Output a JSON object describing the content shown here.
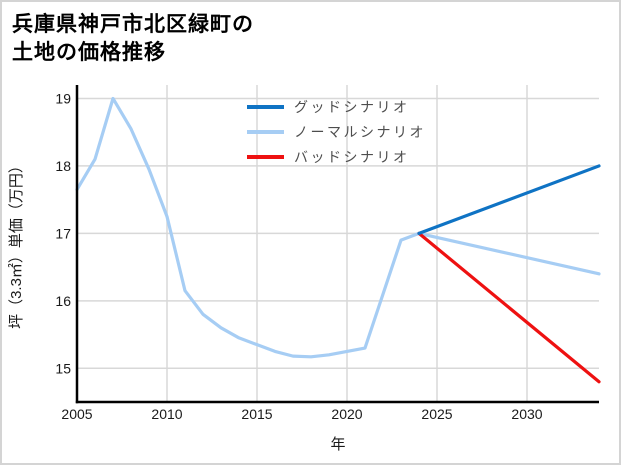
{
  "header": {
    "title_line1": "兵庫県神戸市北区緑町の",
    "title_line2": "土地の価格推移"
  },
  "colors": {
    "background": "#ffffff",
    "frame_border": "#d4d4d4",
    "grid": "#d8d8d8",
    "axis": "#000000",
    "tick_text": "#1a1a1a",
    "legend_text": "#4d4d4d",
    "good_scenario": "#0f73c4",
    "normal_scenario": "#a6cdf4",
    "bad_scenario": "#ee1111"
  },
  "chart_data": {
    "type": "line",
    "title": "兵庫県神戸市北区緑町の土地の価格推移",
    "xlabel": "年",
    "ylabel": "坪（3.3㎡）単価（万円）",
    "xlim": [
      2005,
      2034
    ],
    "ylim": [
      14.5,
      19.2
    ],
    "xticks": [
      2005,
      2010,
      2015,
      2020,
      2025,
      2030
    ],
    "yticks": [
      15,
      16,
      17,
      18,
      19
    ],
    "grid": true,
    "legend": {
      "position": "upper center",
      "frame": false
    },
    "series": [
      {
        "name": "グッドシナリオ",
        "color": "#0f73c4",
        "x": [
          2024,
          2034
        ],
        "y": [
          17.0,
          18.0
        ]
      },
      {
        "name": "ノーマルシナリオ",
        "color": "#a6cdf4",
        "x": [
          2005,
          2006,
          2007,
          2008,
          2009,
          2010,
          2011,
          2012,
          2013,
          2014,
          2015,
          2016,
          2017,
          2018,
          2019,
          2020,
          2021,
          2022,
          2023,
          2024,
          2034
        ],
        "y": [
          17.65,
          18.1,
          19.0,
          18.55,
          17.95,
          17.25,
          16.15,
          15.8,
          15.6,
          15.45,
          15.35,
          15.25,
          15.18,
          15.17,
          15.2,
          15.25,
          15.3,
          16.1,
          16.9,
          17.0,
          16.4
        ]
      },
      {
        "name": "バッドシナリオ",
        "color": "#ee1111",
        "x": [
          2024,
          2034
        ],
        "y": [
          17.0,
          14.8
        ]
      }
    ]
  }
}
